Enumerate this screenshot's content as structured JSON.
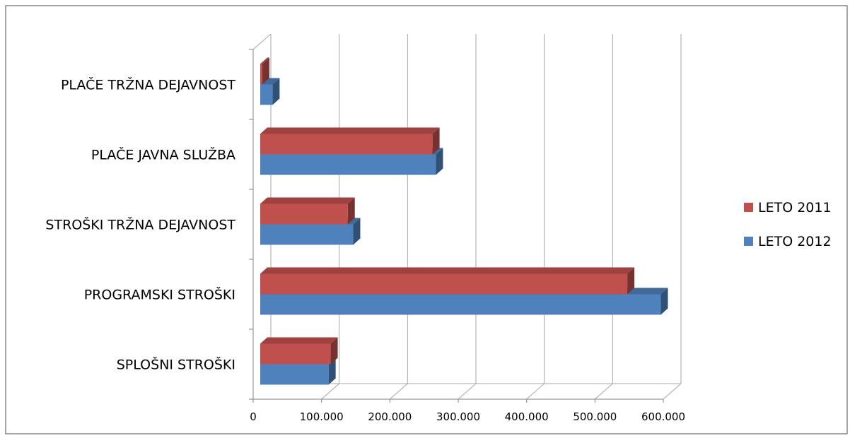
{
  "chart_data": {
    "type": "bar",
    "orientation": "horizontal",
    "style": "3d-clustered",
    "categories": [
      "SPLOŠNI STROŠKI",
      "PROGRAMSKI STROŠKI",
      "STROŠKI TRŽNA DEJAVNOST",
      "PLAČE JAVNA SLUŽBA",
      "PLAČE TRŽNA DEJAVNOST"
    ],
    "series": [
      {
        "name": "LETO 2011",
        "color": "#C0504D",
        "values": [
          103000,
          537000,
          128000,
          252000,
          3000
        ]
      },
      {
        "name": "LETO 2012",
        "color": "#4F81BD",
        "values": [
          100000,
          586000,
          136000,
          257000,
          18000
        ]
      }
    ],
    "legend_order": [
      "LETO 2011",
      "LETO 2012"
    ],
    "xlim": [
      0,
      600000
    ],
    "xticks": [
      0,
      100000,
      200000,
      300000,
      400000,
      500000,
      600000
    ],
    "xtick_labels": [
      "0",
      "100.000",
      "200.000",
      "300.000",
      "400.000",
      "500.000",
      "600.000"
    ],
    "grid": "vertical",
    "legend_position": "right",
    "title": "",
    "xlabel": "",
    "ylabel": ""
  }
}
